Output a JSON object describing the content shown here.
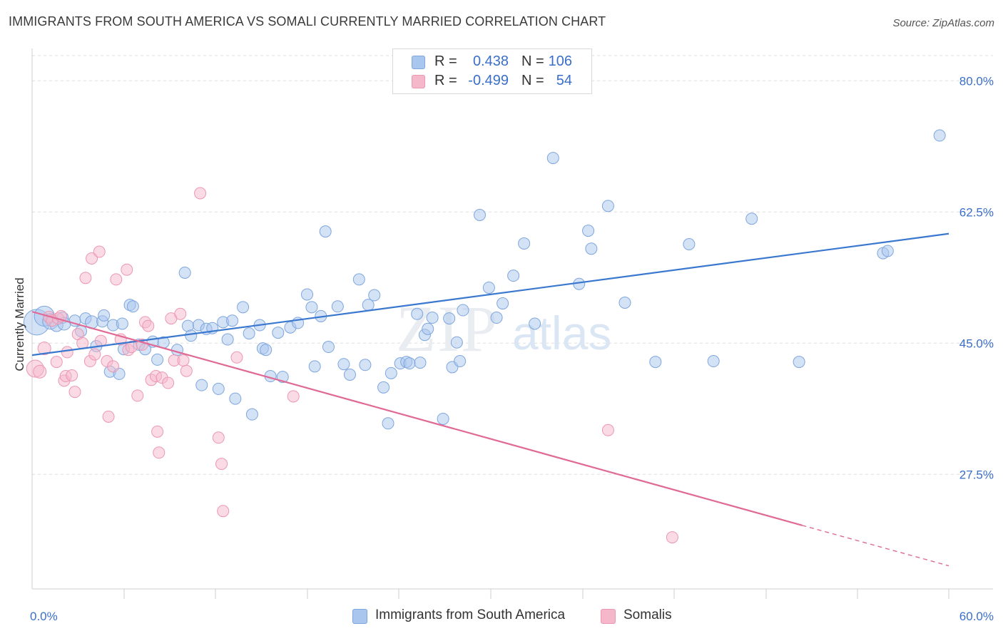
{
  "title": "IMMIGRANTS FROM SOUTH AMERICA VS SOMALI CURRENTLY MARRIED CORRELATION CHART",
  "source": "Source: ZipAtlas.com",
  "watermark": {
    "zip": "ZIP",
    "atlas": "atlas"
  },
  "colors": {
    "blue_fill": "#a9c6ee",
    "blue_stroke": "#7ea6dd",
    "blue_line": "#3a78d0",
    "pink_fill": "#f5b8cb",
    "pink_stroke": "#ec97b2",
    "pink_line": "#e06a95",
    "grid": "#dedede",
    "axis_label": "#3a6fc9"
  },
  "legend_top": [
    {
      "r_label": "R =",
      "r_value": "0.438",
      "n_label": "N =",
      "n_value": "106",
      "color": "#a9c6ee"
    },
    {
      "r_label": "R =",
      "r_value": "-0.499",
      "n_label": "N =",
      "n_value": "54",
      "color": "#f5b8cb"
    }
  ],
  "legend_bottom": [
    {
      "label": "Immigrants from South America",
      "color": "#a9c6ee"
    },
    {
      "label": "Somalis",
      "color": "#f5b8cb"
    }
  ],
  "chart_data": {
    "type": "scatter",
    "xlabel": "",
    "ylabel": "Currently Married",
    "xlim": [
      0,
      60
    ],
    "ylim": [
      12.5,
      82.5
    ],
    "x_tick_labels": [
      {
        "value": 0,
        "label": "0.0%"
      },
      {
        "value": 60,
        "label": "60.0%"
      }
    ],
    "y_tick_labels": [
      {
        "value": 27.5,
        "label": "27.5%"
      },
      {
        "value": 45.0,
        "label": "45.0%"
      },
      {
        "value": 62.5,
        "label": "62.5%"
      },
      {
        "value": 80.0,
        "label": "80.0%"
      }
    ],
    "series": [
      {
        "name": "Immigrants from South America",
        "color": "#a9c6ee",
        "trend": {
          "x0": 0,
          "y0": 43.4,
          "x1": 60,
          "y1": 59.6
        },
        "points": [
          [
            0.3,
            47.8,
            18
          ],
          [
            0.8,
            48.6,
            14
          ],
          [
            1.2,
            47.9,
            11
          ],
          [
            1.6,
            47.4,
            9
          ],
          [
            2.0,
            48.4,
            8
          ],
          [
            2.1,
            47.6,
            9
          ],
          [
            2.8,
            48.0,
            8
          ],
          [
            3.2,
            46.6,
            8
          ],
          [
            3.5,
            48.3,
            8
          ],
          [
            3.9,
            47.8,
            9
          ],
          [
            4.2,
            44.6,
            8
          ],
          [
            4.6,
            47.9,
            8
          ],
          [
            4.7,
            48.7,
            8
          ],
          [
            5.1,
            41.2,
            8
          ],
          [
            5.3,
            47.4,
            8
          ],
          [
            5.7,
            40.9,
            8
          ],
          [
            5.9,
            47.6,
            8
          ],
          [
            6.0,
            44.2,
            8
          ],
          [
            6.4,
            50.1,
            8
          ],
          [
            6.6,
            49.9,
            8
          ],
          [
            7.0,
            44.8,
            8
          ],
          [
            7.4,
            44.2,
            8
          ],
          [
            7.9,
            45.2,
            8
          ],
          [
            8.2,
            42.8,
            8
          ],
          [
            8.6,
            45.1,
            8
          ],
          [
            9.5,
            44.1,
            8
          ],
          [
            10.0,
            54.4,
            8
          ],
          [
            10.2,
            47.3,
            8
          ],
          [
            10.4,
            46.0,
            8
          ],
          [
            10.9,
            47.4,
            8
          ],
          [
            11.1,
            39.4,
            8
          ],
          [
            11.4,
            46.9,
            8
          ],
          [
            11.8,
            47.0,
            8
          ],
          [
            12.2,
            38.9,
            8
          ],
          [
            12.5,
            47.8,
            8
          ],
          [
            12.8,
            45.5,
            8
          ],
          [
            13.1,
            48.0,
            8
          ],
          [
            13.3,
            37.6,
            8
          ],
          [
            13.8,
            49.8,
            8
          ],
          [
            14.2,
            46.3,
            8
          ],
          [
            14.4,
            35.5,
            8
          ],
          [
            14.9,
            47.4,
            8
          ],
          [
            15.1,
            44.3,
            8
          ],
          [
            15.3,
            44.1,
            8
          ],
          [
            15.6,
            40.6,
            8
          ],
          [
            16.1,
            46.4,
            8
          ],
          [
            16.4,
            40.5,
            8
          ],
          [
            16.9,
            47.1,
            8
          ],
          [
            17.4,
            47.7,
            8
          ],
          [
            18.0,
            51.5,
            8
          ],
          [
            18.3,
            49.8,
            8
          ],
          [
            18.5,
            41.9,
            8
          ],
          [
            18.9,
            48.6,
            8
          ],
          [
            19.2,
            59.9,
            8
          ],
          [
            19.4,
            44.5,
            8
          ],
          [
            20.0,
            49.9,
            8
          ],
          [
            20.4,
            42.2,
            8
          ],
          [
            20.8,
            40.8,
            8
          ],
          [
            21.4,
            53.5,
            8
          ],
          [
            21.8,
            42.1,
            8
          ],
          [
            22.0,
            50.1,
            8
          ],
          [
            22.4,
            51.4,
            8
          ],
          [
            23.0,
            39.1,
            8
          ],
          [
            23.3,
            34.3,
            8
          ],
          [
            23.5,
            41.0,
            8
          ],
          [
            24.1,
            42.3,
            8
          ],
          [
            24.5,
            42.5,
            8
          ],
          [
            24.7,
            42.3,
            8
          ],
          [
            25.2,
            48.9,
            8
          ],
          [
            25.4,
            42.4,
            8
          ],
          [
            25.7,
            46.1,
            8
          ],
          [
            25.9,
            46.9,
            8
          ],
          [
            26.2,
            48.4,
            8
          ],
          [
            26.9,
            34.9,
            8
          ],
          [
            27.3,
            48.3,
            8
          ],
          [
            27.5,
            41.8,
            8
          ],
          [
            27.8,
            45.1,
            8
          ],
          [
            28.0,
            42.6,
            8
          ],
          [
            28.2,
            49.4,
            8
          ],
          [
            29.3,
            62.1,
            8
          ],
          [
            29.9,
            52.4,
            8
          ],
          [
            30.4,
            48.4,
            8
          ],
          [
            30.8,
            50.3,
            8
          ],
          [
            31.5,
            54.0,
            8
          ],
          [
            32.2,
            58.3,
            8
          ],
          [
            32.9,
            47.6,
            8
          ],
          [
            34.1,
            69.7,
            8
          ],
          [
            35.8,
            52.9,
            8
          ],
          [
            36.4,
            60.0,
            8
          ],
          [
            36.6,
            57.6,
            8
          ],
          [
            37.7,
            63.3,
            8
          ],
          [
            38.8,
            50.4,
            8
          ],
          [
            40.8,
            42.5,
            8
          ],
          [
            43.0,
            58.2,
            8
          ],
          [
            44.6,
            42.6,
            8
          ],
          [
            47.1,
            61.6,
            8
          ],
          [
            50.2,
            42.5,
            8
          ],
          [
            55.7,
            57.0,
            8
          ],
          [
            56.0,
            57.3,
            8
          ],
          [
            59.4,
            72.7,
            8
          ]
        ]
      },
      {
        "name": "Somalis",
        "color": "#f5b8cb",
        "trend": {
          "x0": 0,
          "y0": 49.2,
          "x1": 50.4,
          "y1": 20.7,
          "dash_x1": 60,
          "dash_y1": 15.3
        },
        "points": [
          [
            0.2,
            41.6,
            12
          ],
          [
            0.5,
            41.2,
            9
          ],
          [
            0.8,
            44.3,
            9
          ],
          [
            1.1,
            48.5,
            8
          ],
          [
            1.3,
            48.0,
            8
          ],
          [
            1.6,
            42.5,
            8
          ],
          [
            1.7,
            48.3,
            8
          ],
          [
            1.9,
            48.6,
            8
          ],
          [
            2.1,
            40.0,
            8
          ],
          [
            2.2,
            40.6,
            8
          ],
          [
            2.3,
            43.8,
            8
          ],
          [
            2.6,
            40.7,
            8
          ],
          [
            2.8,
            38.5,
            8
          ],
          [
            3.0,
            46.2,
            8
          ],
          [
            3.3,
            45.0,
            8
          ],
          [
            3.5,
            53.7,
            8
          ],
          [
            3.8,
            42.6,
            8
          ],
          [
            3.9,
            56.3,
            8
          ],
          [
            4.1,
            43.5,
            8
          ],
          [
            4.4,
            57.2,
            8
          ],
          [
            4.5,
            45.3,
            8
          ],
          [
            4.9,
            42.6,
            8
          ],
          [
            5.0,
            35.2,
            8
          ],
          [
            5.3,
            41.9,
            8
          ],
          [
            5.5,
            53.5,
            8
          ],
          [
            5.8,
            45.5,
            8
          ],
          [
            6.2,
            54.8,
            8
          ],
          [
            6.3,
            44.1,
            8
          ],
          [
            6.5,
            44.5,
            8
          ],
          [
            6.9,
            38.0,
            8
          ],
          [
            7.2,
            44.8,
            8
          ],
          [
            7.4,
            47.8,
            8
          ],
          [
            7.6,
            47.3,
            8
          ],
          [
            7.8,
            40.1,
            8
          ],
          [
            8.1,
            40.6,
            8
          ],
          [
            8.2,
            33.2,
            8
          ],
          [
            8.3,
            30.4,
            8
          ],
          [
            8.5,
            40.4,
            8
          ],
          [
            8.9,
            39.7,
            8
          ],
          [
            9.1,
            48.3,
            8
          ],
          [
            9.3,
            42.7,
            8
          ],
          [
            9.7,
            48.9,
            8
          ],
          [
            9.9,
            42.7,
            8
          ],
          [
            10.1,
            41.3,
            8
          ],
          [
            11.0,
            65.0,
            8
          ],
          [
            12.2,
            32.4,
            8
          ],
          [
            12.4,
            28.9,
            8
          ],
          [
            12.5,
            22.6,
            8
          ],
          [
            13.4,
            43.1,
            8
          ],
          [
            17.1,
            37.9,
            8
          ],
          [
            37.7,
            33.4,
            8
          ],
          [
            41.9,
            19.1,
            8
          ]
        ]
      }
    ]
  }
}
